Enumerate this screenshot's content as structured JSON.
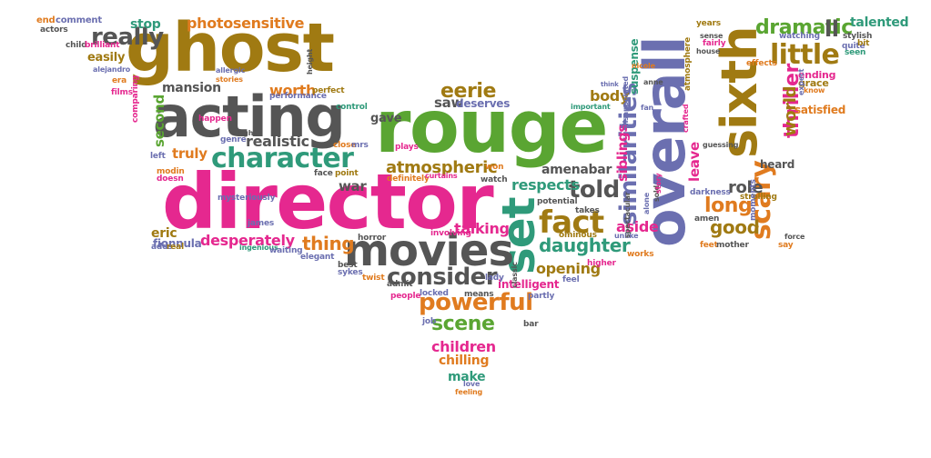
{
  "palette": {
    "magenta": "#e5288f",
    "green": "#5aa532",
    "slate": "#6b6fb0",
    "olive": "#a07a12",
    "gray": "#555555",
    "orange": "#e07b1f",
    "teal": "#2f9a7a"
  },
  "words": [
    {
      "key": "director",
      "text": "director",
      "color": "magenta"
    },
    {
      "key": "rouge",
      "text": "rouge",
      "color": "green"
    },
    {
      "key": "ghost",
      "text": "ghost",
      "color": "olive"
    },
    {
      "key": "acting",
      "text": "acting",
      "color": "gray"
    },
    {
      "key": "overall",
      "text": "overall",
      "color": "slate"
    },
    {
      "key": "sixth",
      "text": "sixth",
      "color": "olive"
    },
    {
      "key": "set",
      "text": "set",
      "color": "teal"
    },
    {
      "key": "movies",
      "text": "movies",
      "color": "gray"
    },
    {
      "key": "character",
      "text": "character",
      "color": "teal"
    },
    {
      "key": "fact",
      "text": "fact",
      "color": "olive"
    },
    {
      "key": "little",
      "text": "little",
      "color": "olive"
    },
    {
      "key": "scary",
      "text": "scary",
      "color": "orange"
    },
    {
      "key": "similarities",
      "text": "similarities",
      "color": "slate"
    },
    {
      "key": "really",
      "text": "really",
      "color": "gray"
    },
    {
      "key": "consider",
      "text": "consider",
      "color": "gray"
    },
    {
      "key": "powerful",
      "text": "powerful",
      "color": "orange"
    },
    {
      "key": "scene",
      "text": "scene",
      "color": "green"
    },
    {
      "key": "told",
      "text": "told",
      "color": "gray"
    },
    {
      "key": "thriller",
      "text": "thriller",
      "color": "magenta"
    },
    {
      "key": "dramatic",
      "text": "dramatic",
      "color": "green"
    },
    {
      "key": "atmospheric",
      "text": "atmospheric",
      "color": "olive"
    },
    {
      "key": "eerie",
      "text": "eerie",
      "color": "olive"
    },
    {
      "key": "daughter",
      "text": "daughter",
      "color": "teal"
    },
    {
      "key": "thing",
      "text": "thing",
      "color": "orange"
    },
    {
      "key": "desperately",
      "text": "desperately",
      "color": "magenta"
    },
    {
      "key": "long",
      "text": "long",
      "color": "orange"
    },
    {
      "key": "good",
      "text": "good",
      "color": "olive"
    },
    {
      "key": "role",
      "text": "role",
      "color": "gray"
    },
    {
      "key": "world",
      "text": "world",
      "color": "olive"
    },
    {
      "key": "worth",
      "text": "worth",
      "color": "orange"
    },
    {
      "key": "respects",
      "text": "respects",
      "color": "teal"
    },
    {
      "key": "talking",
      "text": "talking",
      "color": "magenta"
    },
    {
      "key": "children",
      "text": "children",
      "color": "magenta"
    },
    {
      "key": "chilling",
      "text": "chilling",
      "color": "orange"
    },
    {
      "key": "make",
      "text": "make",
      "color": "teal"
    },
    {
      "key": "opening",
      "text": "opening",
      "color": "olive"
    },
    {
      "key": "intelligent",
      "text": "intelligent",
      "color": "magenta"
    },
    {
      "key": "photosensitive",
      "text": "photosensitive",
      "color": "orange"
    },
    {
      "key": "mansion",
      "text": "mansion",
      "color": "gray"
    },
    {
      "key": "realistic",
      "text": "realistic",
      "color": "gray"
    },
    {
      "key": "second",
      "text": "second",
      "color": "green"
    },
    {
      "key": "truly",
      "text": "truly",
      "color": "orange"
    },
    {
      "key": "war",
      "text": "war",
      "color": "gray"
    },
    {
      "key": "saw",
      "text": "saw",
      "color": "gray"
    },
    {
      "key": "deserves",
      "text": "deserves",
      "color": "slate"
    },
    {
      "key": "body",
      "text": "body",
      "color": "olive"
    },
    {
      "key": "aside",
      "text": "aside",
      "color": "magenta"
    },
    {
      "key": "amenabar",
      "text": "amenabar",
      "color": "gray"
    },
    {
      "key": "suspense",
      "text": "suspense",
      "color": "teal"
    },
    {
      "key": "leave",
      "text": "leave",
      "color": "magenta"
    },
    {
      "key": "siblings",
      "text": "siblings",
      "color": "magenta"
    },
    {
      "key": "talented",
      "text": "talented",
      "color": "teal"
    },
    {
      "key": "ll",
      "text": "ll",
      "color": "gray"
    },
    {
      "key": "easily",
      "text": "easily",
      "color": "olive"
    },
    {
      "key": "stop",
      "text": "stop",
      "color": "teal"
    },
    {
      "key": "eric",
      "text": "eric",
      "color": "olive"
    },
    {
      "key": "gave",
      "text": "gave",
      "color": "gray"
    },
    {
      "key": "satisfied",
      "text": "satisfied",
      "color": "orange"
    },
    {
      "key": "ending",
      "text": "ending",
      "color": "magenta"
    },
    {
      "key": "grace",
      "text": "grace",
      "color": "olive"
    },
    {
      "key": "heard",
      "text": "heard",
      "color": "gray"
    },
    {
      "key": "fionnula",
      "text": "fionnula",
      "color": "slate"
    },
    {
      "key": "end",
      "text": "end",
      "color": "orange"
    },
    {
      "key": "comment",
      "text": "comment",
      "color": "slate"
    },
    {
      "key": "actors",
      "text": "actors",
      "color": "gray"
    },
    {
      "key": "child",
      "text": "child",
      "color": "gray"
    },
    {
      "key": "brilliant",
      "text": "brilliant",
      "color": "magenta"
    },
    {
      "key": "alejandro",
      "text": "alejandro",
      "color": "slate"
    },
    {
      "key": "era",
      "text": "era",
      "color": "orange"
    },
    {
      "key": "films",
      "text": "films",
      "color": "magenta"
    },
    {
      "key": "allergic",
      "text": "allergic",
      "color": "slate"
    },
    {
      "key": "stories",
      "text": "stories",
      "color": "orange"
    },
    {
      "key": "height",
      "text": "height",
      "color": "gray"
    },
    {
      "key": "performance",
      "text": "performance",
      "color": "slate"
    },
    {
      "key": "perfect",
      "text": "perfect",
      "color": "olive"
    },
    {
      "key": "control",
      "text": "control",
      "color": "teal"
    },
    {
      "key": "happen",
      "text": "happen",
      "color": "magenta"
    },
    {
      "key": "genre",
      "text": "genre",
      "color": "slate"
    },
    {
      "key": "light",
      "text": "light",
      "color": "gray"
    },
    {
      "key": "close",
      "text": "close",
      "color": "orange"
    },
    {
      "key": "mrs",
      "text": "mrs",
      "color": "slate"
    },
    {
      "key": "plays",
      "text": "plays",
      "color": "magenta"
    },
    {
      "key": "comparing",
      "text": "comparing",
      "color": "magenta"
    },
    {
      "key": "left",
      "text": "left",
      "color": "slate"
    },
    {
      "key": "modin",
      "text": "modin",
      "color": "orange"
    },
    {
      "key": "doesn",
      "text": "doesn",
      "color": "magenta"
    },
    {
      "key": "mysteriously",
      "text": "mysteriously",
      "color": "slate"
    },
    {
      "key": "face",
      "text": "face",
      "color": "gray"
    },
    {
      "key": "point",
      "text": "point",
      "color": "olive"
    },
    {
      "key": "definitely",
      "text": "definitely",
      "color": "orange"
    },
    {
      "key": "curtains",
      "text": "curtains",
      "color": "magenta"
    },
    {
      "key": "won",
      "text": "won",
      "color": "orange"
    },
    {
      "key": "watch",
      "text": "watch",
      "color": "gray"
    },
    {
      "key": "potential",
      "text": "potential",
      "color": "gray"
    },
    {
      "key": "ominous",
      "text": "ominous",
      "color": "olive"
    },
    {
      "key": "james",
      "text": "james",
      "color": "slate"
    },
    {
      "key": "adds",
      "text": "adds",
      "color": "slate"
    },
    {
      "key": "real",
      "text": "real",
      "color": "olive"
    },
    {
      "key": "ingenious",
      "text": "ingenious",
      "color": "teal"
    },
    {
      "key": "waiting",
      "text": "waiting",
      "color": "slate"
    },
    {
      "key": "elegant",
      "text": "elegant",
      "color": "slate"
    },
    {
      "key": "horror",
      "text": "horror",
      "color": "gray"
    },
    {
      "key": "involving",
      "text": "involving",
      "color": "magenta"
    },
    {
      "key": "best",
      "text": "best",
      "color": "gray"
    },
    {
      "key": "sykes",
      "text": "sykes",
      "color": "slate"
    },
    {
      "key": "twist",
      "text": "twist",
      "color": "orange"
    },
    {
      "key": "lady",
      "text": "lady",
      "color": "slate"
    },
    {
      "key": "admit",
      "text": "admit",
      "color": "gray"
    },
    {
      "key": "people",
      "text": "people",
      "color": "magenta"
    },
    {
      "key": "locked",
      "text": "locked",
      "color": "slate"
    },
    {
      "key": "means",
      "text": "means",
      "color": "gray"
    },
    {
      "key": "classic",
      "text": "classic",
      "color": "gray"
    },
    {
      "key": "partly",
      "text": "partly",
      "color": "slate"
    },
    {
      "key": "job",
      "text": "job",
      "color": "slate"
    },
    {
      "key": "bar",
      "text": "bar",
      "color": "gray"
    },
    {
      "key": "love",
      "text": "love",
      "color": "slate"
    },
    {
      "key": "feeling",
      "text": "feeling",
      "color": "orange"
    },
    {
      "key": "takes",
      "text": "takes",
      "color": "gray"
    },
    {
      "key": "unlike",
      "text": "unlike",
      "color": "slate"
    },
    {
      "key": "higher",
      "text": "higher",
      "color": "magenta"
    },
    {
      "key": "works",
      "text": "works",
      "color": "orange"
    },
    {
      "key": "feel",
      "text": "feel",
      "color": "slate"
    },
    {
      "key": "spectacular",
      "text": "spectacular",
      "color": "gray"
    },
    {
      "key": "alone",
      "text": "alone",
      "color": "slate"
    },
    {
      "key": "sold",
      "text": "sold",
      "color": "gray"
    },
    {
      "key": "story",
      "text": "story",
      "color": "magenta"
    },
    {
      "key": "darkness",
      "text": "darkness",
      "color": "slate"
    },
    {
      "key": "amen",
      "text": "amen",
      "color": "gray"
    },
    {
      "key": "feet",
      "text": "feet",
      "color": "orange"
    },
    {
      "key": "mother",
      "text": "mother",
      "color": "gray"
    },
    {
      "key": "strolling",
      "text": "strolling",
      "color": "olive"
    },
    {
      "key": "moments",
      "text": "moments",
      "color": "slate"
    },
    {
      "key": "force",
      "text": "force",
      "color": "gray"
    },
    {
      "key": "say",
      "text": "say",
      "color": "orange"
    },
    {
      "key": "think",
      "text": "think",
      "color": "slate"
    },
    {
      "key": "nicole",
      "text": "nicole",
      "color": "orange"
    },
    {
      "key": "anne",
      "text": "anne",
      "color": "gray"
    },
    {
      "key": "important",
      "text": "important",
      "color": "teal"
    },
    {
      "key": "disappointed",
      "text": "disappointed",
      "color": "slate"
    },
    {
      "key": "fan",
      "text": "fan",
      "color": "slate"
    },
    {
      "key": "atmosphere",
      "text": "atmosphere",
      "color": "olive"
    },
    {
      "key": "guessing",
      "text": "guessing",
      "color": "gray"
    },
    {
      "key": "crafted",
      "text": "crafted",
      "color": "magenta"
    },
    {
      "key": "years",
      "text": "years",
      "color": "olive"
    },
    {
      "key": "sense",
      "text": "sense",
      "color": "gray"
    },
    {
      "key": "fairly",
      "text": "fairly",
      "color": "magenta"
    },
    {
      "key": "house",
      "text": "house",
      "color": "gray"
    },
    {
      "key": "watching",
      "text": "watching",
      "color": "slate"
    },
    {
      "key": "effects",
      "text": "effects",
      "color": "orange"
    },
    {
      "key": "stylish",
      "text": "stylish",
      "color": "gray"
    },
    {
      "key": "quite",
      "text": "quite",
      "color": "slate"
    },
    {
      "key": "seen",
      "text": "seen",
      "color": "teal"
    },
    {
      "key": "bit",
      "text": "bit",
      "color": "olive"
    },
    {
      "key": "expect",
      "text": "expect",
      "color": "slate"
    },
    {
      "key": "know",
      "text": "know",
      "color": "orange"
    }
  ]
}
